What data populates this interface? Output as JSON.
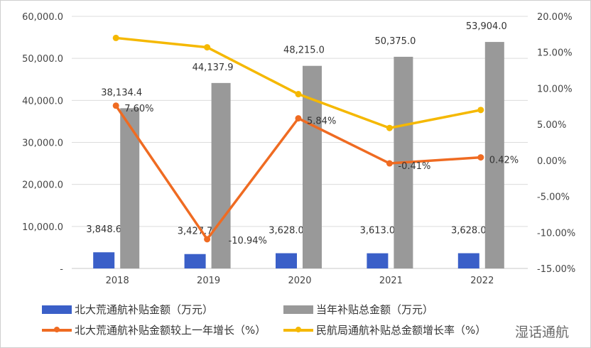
{
  "chart_data": {
    "type": "bar",
    "categories": [
      "2018",
      "2019",
      "2020",
      "2021",
      "2022"
    ],
    "left_axis": {
      "ylim": [
        0,
        60000
      ],
      "ticks": [
        "-",
        "10,000.0",
        "20,000.0",
        "30,000.0",
        "40,000.0",
        "50,000.0",
        "60,000.0"
      ]
    },
    "right_axis": {
      "ylim": [
        -15,
        20
      ],
      "ticks": [
        "-15.00%",
        "-10.00%",
        "-5.00%",
        "0.00%",
        "5.00%",
        "10.00%",
        "15.00%",
        "20.00%"
      ]
    },
    "grid": true,
    "legend_placement": "bottom",
    "series": [
      {
        "name": "北大荒通航补贴金额（万元）",
        "type": "bar",
        "axis": "left",
        "color": "#3a5fc8",
        "values": [
          3848.6,
          3427.7,
          3628.0,
          3613.0,
          3628.0
        ],
        "labels": [
          "3,848.6",
          "3,427.7",
          "3,628.0",
          "3,613.0",
          "3,628.0"
        ]
      },
      {
        "name": "当年补贴总金额（万元）",
        "type": "bar",
        "axis": "left",
        "color": "#999999",
        "values": [
          38134.4,
          44137.9,
          48215.0,
          50375.0,
          53904.0
        ],
        "labels": [
          "38,134.4",
          "44,137.9",
          "48,215.0",
          "50,375.0",
          "53,904.0"
        ]
      },
      {
        "name": "北大荒通航补贴金额较上一年增长（%）",
        "type": "line",
        "axis": "right",
        "color": "#ef6b22",
        "values": [
          7.6,
          -10.94,
          5.84,
          -0.41,
          0.42
        ],
        "labels": [
          "7.60%",
          "-10.94%",
          "5.84%",
          "-0.41%",
          "0.42%"
        ]
      },
      {
        "name": "民航局通航补贴总金额增长率（%）",
        "type": "line",
        "axis": "right",
        "color": "#f5b800",
        "values": [
          17.0,
          15.7,
          9.2,
          4.5,
          7.0
        ]
      }
    ]
  },
  "watermark": "湿话通航"
}
